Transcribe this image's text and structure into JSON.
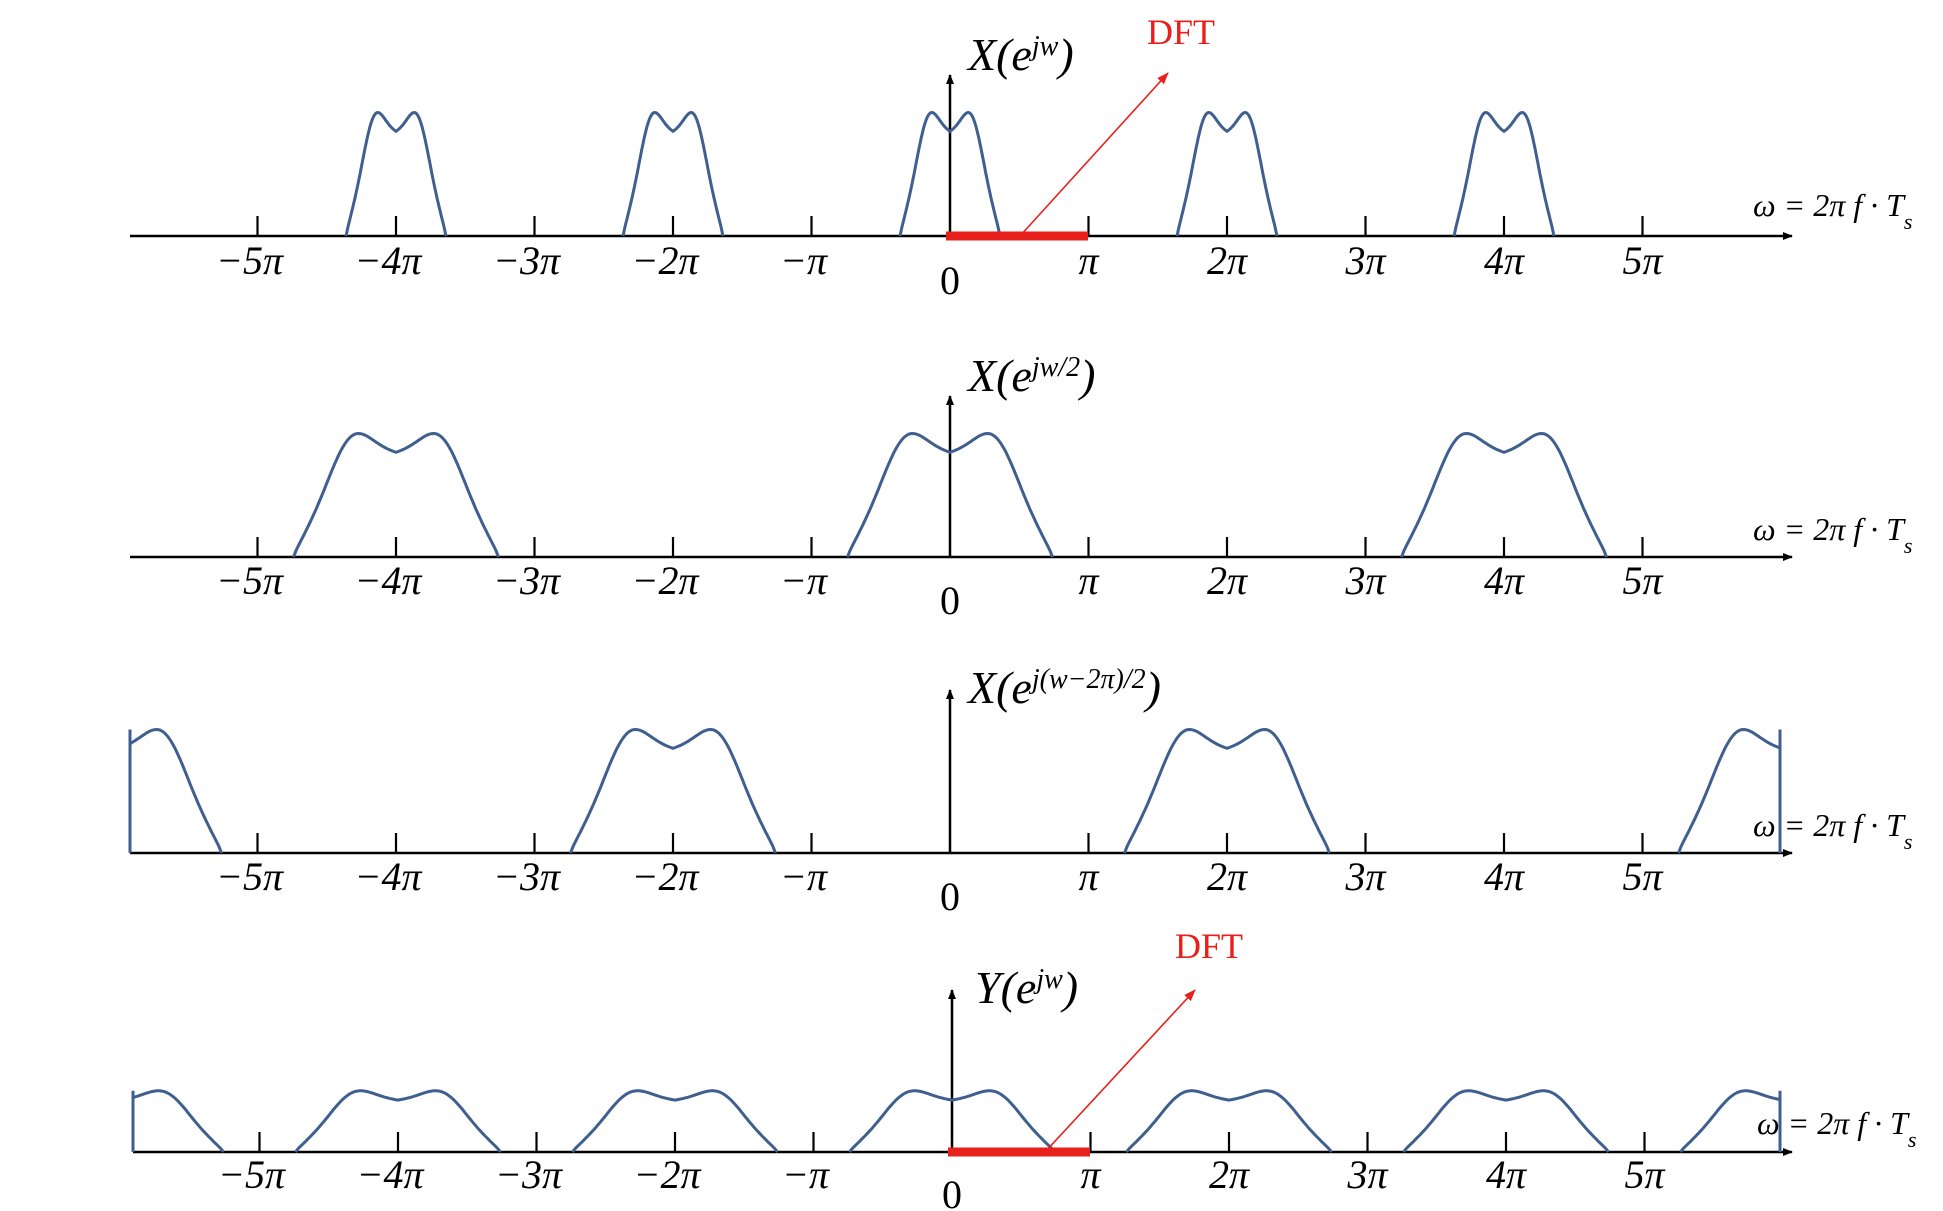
{
  "colors": {
    "curve": "#3f5f8f",
    "axis": "#000000",
    "dft": "#e8201b"
  },
  "tick_labels": [
    "−5π",
    "−4π",
    "−3π",
    "−2π",
    "−π",
    "0",
    "π",
    "2π",
    "3π",
    "4π",
    "5π"
  ],
  "panels": [
    {
      "title": "X(e^{jw})",
      "title_parts": [
        "X(e",
        "jw",
        ")"
      ],
      "omega_label": "ω = 2π f · T",
      "omega_sub": "s",
      "dft_label": "DFT",
      "has_dft": true,
      "spectrum": {
        "centers_pi": [
          -4,
          -2,
          0,
          2,
          4
        ],
        "half_width_pi": 0.36,
        "dip_depth": 0.2,
        "height": 1.0
      }
    },
    {
      "title": "X(e^{jw/2})",
      "title_parts": [
        "X(e",
        "jw/2",
        ")"
      ],
      "omega_label": "ω = 2π f · T",
      "omega_sub": "s",
      "has_dft": false,
      "spectrum": {
        "centers_pi": [
          -4,
          0,
          4
        ],
        "half_width_pi": 0.74,
        "dip_depth": 0.2,
        "height": 1.0
      }
    },
    {
      "title": "X(e^{j(w−2π)/2})",
      "title_parts": [
        "X(e",
        "j(w−2π)/2",
        ")"
      ],
      "omega_label": "ω = 2π f · T",
      "omega_sub": "s",
      "has_dft": false,
      "spectrum": {
        "centers_pi": [
          -6,
          -2,
          2,
          6
        ],
        "half_width_pi": 0.74,
        "dip_depth": 0.2,
        "height": 1.0
      }
    },
    {
      "title": "Y(e^{jw})",
      "title_parts": [
        "Y(e",
        "jw",
        ")"
      ],
      "omega_label": "ω = 2π f · T",
      "omega_sub": "s",
      "dft_label": "DFT",
      "has_dft": true,
      "spectrum": {
        "centers_pi": [
          -6,
          -4,
          -2,
          0,
          2,
          4,
          6
        ],
        "half_width_pi": 0.74,
        "dip_depth": 0.2,
        "height": 0.5
      }
    }
  ]
}
